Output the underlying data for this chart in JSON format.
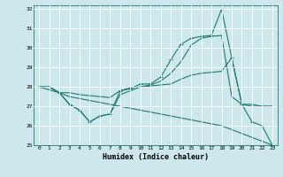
{
  "xlabel": "Humidex (Indice chaleur)",
  "bg_color": "#cce8ec",
  "grid_color": "#ffffff",
  "line_color": "#1a7a6e",
  "xlim": [
    -0.5,
    23.5
  ],
  "ylim": [
    25,
    32.2
  ],
  "xticks": [
    0,
    1,
    2,
    3,
    4,
    5,
    6,
    7,
    8,
    9,
    10,
    11,
    12,
    13,
    14,
    15,
    16,
    17,
    18,
    19,
    20,
    21,
    22,
    23
  ],
  "yticks": [
    25,
    26,
    27,
    28,
    29,
    30,
    31,
    32
  ],
  "series": [
    {
      "y": [
        28.0,
        28.0,
        27.7,
        27.1,
        26.8,
        26.2,
        26.5,
        26.6,
        27.8,
        27.9,
        28.15,
        28.15,
        28.5,
        29.4,
        30.2,
        30.5,
        30.6,
        30.65,
        32.0,
        29.5,
        27.1,
        26.2,
        26.0,
        25.0
      ],
      "marker": true
    },
    {
      "y": [
        28.0,
        27.85,
        27.7,
        27.7,
        27.6,
        27.55,
        27.5,
        27.45,
        27.8,
        27.95,
        28.0,
        28.05,
        28.1,
        28.15,
        28.4,
        28.6,
        28.7,
        28.75,
        28.8,
        29.5,
        27.1,
        27.1,
        27.0,
        27.0
      ],
      "marker": false
    },
    {
      "y": [
        28.0,
        28.0,
        27.7,
        27.1,
        26.8,
        26.2,
        26.5,
        26.6,
        27.6,
        27.8,
        28.0,
        28.1,
        28.3,
        28.7,
        29.3,
        30.15,
        30.5,
        30.6,
        30.65,
        27.5,
        27.1,
        27.0,
        27.0,
        27.0
      ],
      "marker": false
    },
    {
      "y": [
        28.0,
        28.0,
        27.7,
        27.5,
        27.4,
        27.3,
        27.2,
        27.1,
        27.0,
        26.9,
        26.8,
        26.7,
        26.6,
        26.5,
        26.4,
        26.3,
        26.2,
        26.1,
        26.0,
        25.8,
        25.6,
        25.4,
        25.2,
        25.0
      ],
      "marker": false
    }
  ]
}
